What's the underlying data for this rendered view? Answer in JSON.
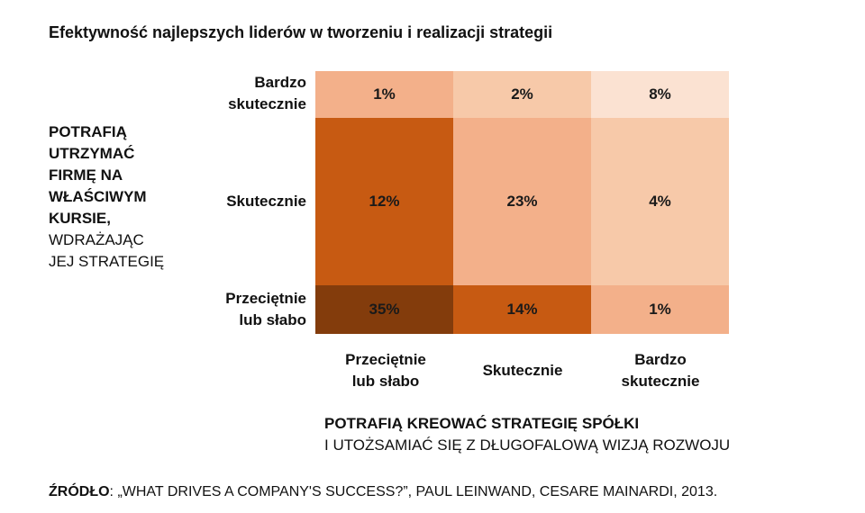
{
  "title": "Efektywność najlepszych liderów w tworzeniu i realizacji strategii",
  "y_axis": {
    "bold_lines": [
      "POTRAFIĄ",
      "UTRZYMAĆ",
      "FIRMĘ NA",
      "WŁAŚCIWYM",
      "KURSIE,"
    ],
    "normal_lines": [
      "WDRAŻAJĄC",
      "JEJ STRATEGIĘ"
    ]
  },
  "x_axis": {
    "line1": "POTRAFIĄ KREOWAĆ STRATEGIĘ SPÓŁKI",
    "line2": "I UTOŻSAMIAĆ SIĘ Z DŁUGOFALOWĄ WIZJĄ ROZWOJU"
  },
  "source": {
    "label": "ŹRÓDŁO",
    "text": ": „WHAT DRIVES A COMPANY'S SUCCESS?”, PAUL LEINWAND, CESARE MAINARDI, 2013."
  },
  "chart_data": {
    "type": "heatmap",
    "rows": [
      [
        "Bardzo",
        "skutecznie"
      ],
      [
        "Skutecznie"
      ],
      [
        "Przeciętnie",
        "lub słabo"
      ]
    ],
    "columns": [
      [
        "Przeciętnie",
        "lub słabo"
      ],
      [
        "Skutecznie"
      ],
      [
        "Bardzo",
        "skutecznie"
      ]
    ],
    "values": [
      [
        "1%",
        "2%",
        "8%"
      ],
      [
        "12%",
        "23%",
        "4%"
      ],
      [
        "35%",
        "14%",
        "1%"
      ]
    ],
    "colors": [
      [
        "#f3b08a",
        "#f7c9a9",
        "#fbe2d2"
      ],
      [
        "#c75a12",
        "#f3b08a",
        "#f7c9a9"
      ],
      [
        "#833c0c",
        "#c75a12",
        "#f3b08a"
      ]
    ]
  }
}
